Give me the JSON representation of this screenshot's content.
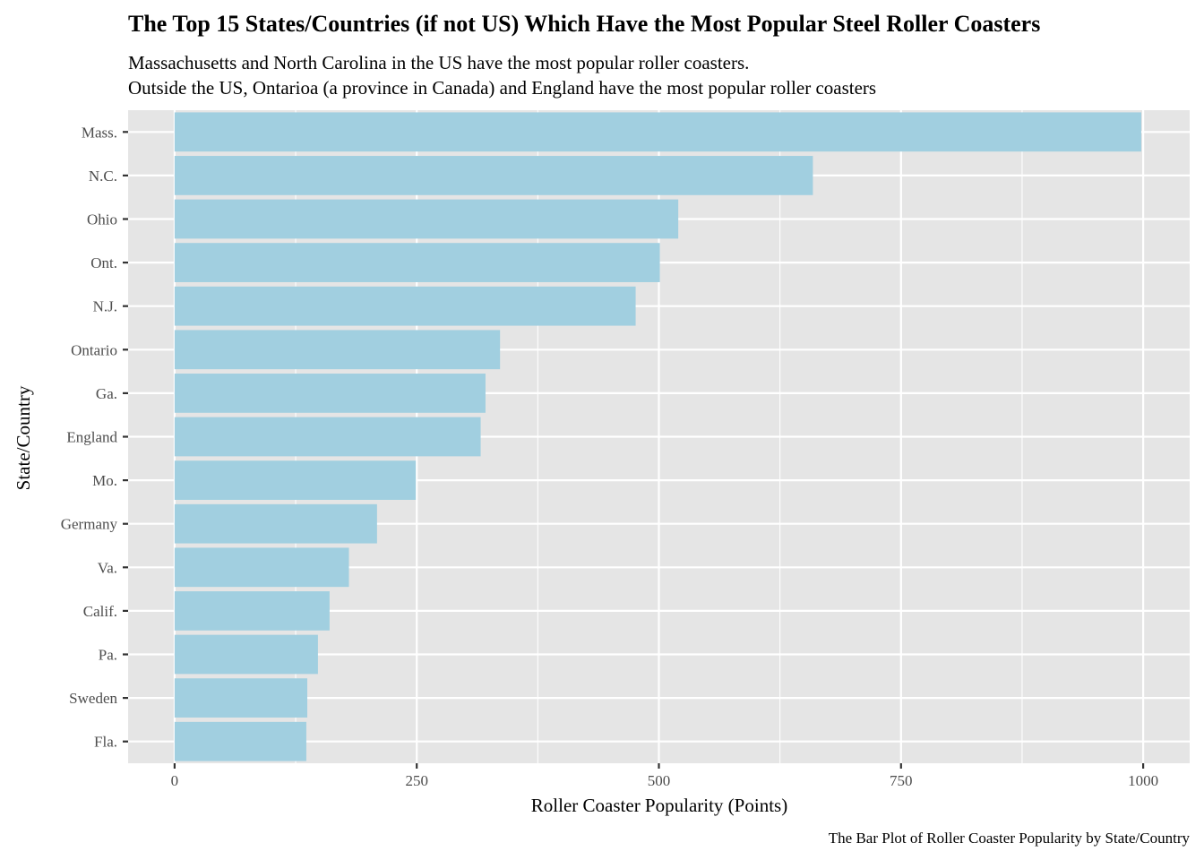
{
  "chart_data": {
    "type": "bar",
    "orientation": "horizontal",
    "title": "The Top 15 States/Countries (if not US) Which Have the Most Popular Steel Roller Coasters",
    "subtitle": [
      "Massachusetts and North Carolina in the US have the most popular roller coasters.",
      "Outside the US, Ontarioa (a province in Canada) and England have the most popular roller coasters"
    ],
    "xlabel": "Roller Coaster Popularity (Points)",
    "ylabel": "State/Country",
    "caption": "The Bar Plot of Roller Coaster Popularity by State/Country",
    "xlim": [
      -48,
      1048
    ],
    "xticks": [
      0,
      250,
      500,
      750,
      1000
    ],
    "grid": true,
    "legend": "none",
    "categories": [
      "Mass.",
      "N.C.",
      "Ohio",
      "Ont.",
      "N.J.",
      "Ontario",
      "Ga.",
      "England",
      "Mo.",
      "Germany",
      "Va.",
      "Calif.",
      "Pa.",
      "Sweden",
      "Fla."
    ],
    "values": [
      998,
      659,
      520,
      501,
      476,
      336,
      321,
      316,
      249,
      209,
      180,
      160,
      148,
      137,
      136
    ],
    "colors": {
      "bar": "#a1cfe0",
      "panel": "#e5e5e5",
      "grid": "#ffffff",
      "tick_text": "#4d4d4d",
      "tick_mark": "#333333"
    }
  }
}
